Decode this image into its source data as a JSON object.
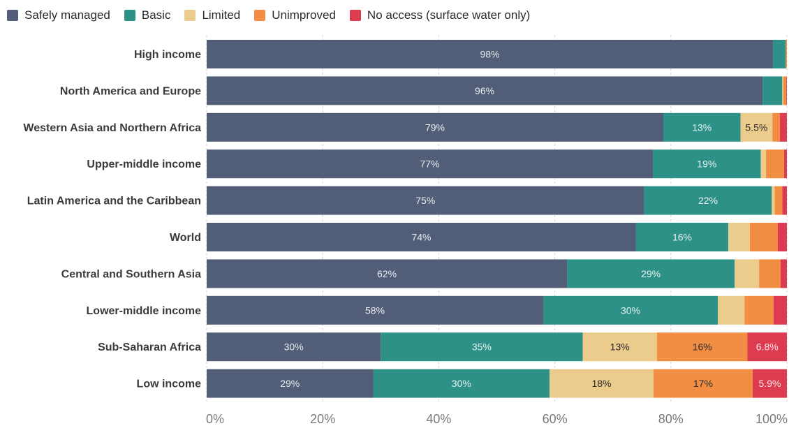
{
  "chart_data": {
    "type": "bar",
    "orientation": "horizontal",
    "stacked": true,
    "title": "",
    "xlabel": "",
    "ylabel": "",
    "xlim": [
      0,
      100
    ],
    "grid": "vertical",
    "legend_position": "top-left",
    "x_ticks": [
      "0%",
      "20%",
      "40%",
      "60%",
      "80%",
      "100%"
    ],
    "categories": [
      "High income",
      "North America and Europe",
      "Western Asia and Northern Africa",
      "Upper-middle income",
      "Latin America and the Caribbean",
      "World",
      "Central and Southern Asia",
      "Lower-middle income",
      "Sub-Saharan Africa",
      "Low income"
    ],
    "series": [
      {
        "name": "Safely managed",
        "color": "#525e78",
        "values": [
          97.6,
          95.8,
          78.7,
          76.9,
          75.4,
          74.0,
          62.1,
          58.0,
          30.0,
          28.7
        ],
        "labels": [
          "98%",
          "96%",
          "79%",
          "77%",
          "75%",
          "74%",
          "62%",
          "58%",
          "30%",
          "29%"
        ]
      },
      {
        "name": "Basic",
        "color": "#2e9188",
        "values": [
          2.2,
          3.4,
          13.3,
          18.6,
          22.0,
          15.9,
          28.9,
          30.1,
          34.8,
          30.4
        ],
        "labels": [
          "",
          "",
          "13%",
          "19%",
          "22%",
          "16%",
          "29%",
          "30%",
          "35%",
          "30%"
        ]
      },
      {
        "name": "Limited",
        "color": "#eccc8c",
        "values": [
          0.0,
          0.2,
          5.5,
          0.9,
          0.5,
          3.7,
          4.2,
          4.6,
          12.8,
          17.9
        ],
        "labels": [
          "",
          "",
          "5.5%",
          "",
          "",
          "",
          "",
          "",
          "13%",
          "18%"
        ]
      },
      {
        "name": "Unimproved",
        "color": "#f28e43",
        "values": [
          0.2,
          0.5,
          1.3,
          3.1,
          1.3,
          4.8,
          3.7,
          5.0,
          15.6,
          17.1
        ],
        "labels": [
          "",
          "",
          "",
          "",
          "",
          "",
          "",
          "",
          "16%",
          "17%"
        ]
      },
      {
        "name": "No access (surface water only)",
        "color": "#dc3b50",
        "values": [
          0.0,
          0.1,
          1.2,
          0.5,
          0.8,
          1.6,
          1.1,
          2.3,
          6.8,
          5.9
        ],
        "labels": [
          "",
          "",
          "",
          "",
          "",
          "",
          "",
          "",
          "6.8%",
          "5.9%"
        ]
      }
    ]
  }
}
